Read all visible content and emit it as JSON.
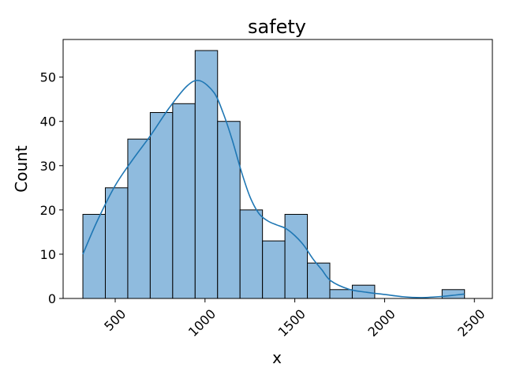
{
  "chart_data": {
    "type": "bar",
    "subtype": "histogram-with-kde",
    "title": "safety",
    "xlabel": "x",
    "ylabel": "Count",
    "xlim": [
      210,
      2600
    ],
    "ylim": [
      0,
      58.5
    ],
    "xticks": [
      500,
      1000,
      1500,
      2000,
      2500
    ],
    "xtick_labels": [
      "500",
      "1000",
      "1500",
      "2000",
      "2500"
    ],
    "xtick_rotation": 45,
    "yticks": [
      0,
      10,
      20,
      30,
      40,
      50
    ],
    "ytick_labels": [
      "0",
      "10",
      "20",
      "30",
      "40",
      "50"
    ],
    "grid": false,
    "legend": "none",
    "bin_edges": [
      320,
      445,
      570,
      695,
      820,
      945,
      1070,
      1195,
      1320,
      1445,
      1570,
      1695,
      1820,
      1945,
      2070,
      2195,
      2320,
      2445
    ],
    "counts": [
      19,
      25,
      36,
      42,
      44,
      56,
      40,
      20,
      13,
      19,
      8,
      2,
      3,
      0,
      0,
      0,
      2
    ],
    "kde": {
      "x": [
        320,
        400,
        500,
        600,
        700,
        800,
        900,
        970,
        1050,
        1100,
        1150,
        1200,
        1250,
        1300,
        1350,
        1400,
        1450,
        1500,
        1550,
        1600,
        1650,
        1700,
        1800,
        1900,
        2000,
        2100,
        2200,
        2300,
        2400,
        2445
      ],
      "y": [
        10,
        17.5,
        25.5,
        31.5,
        37,
        43,
        48,
        49.2,
        46.5,
        42,
        36,
        29,
        23,
        19.2,
        17.5,
        16.6,
        15.8,
        14.2,
        12,
        9,
        6.5,
        4,
        2.1,
        1.4,
        0.9,
        0.4,
        0.2,
        0.4,
        0.8,
        1.0
      ]
    },
    "colors": {
      "bar_fill": "#8fbbde",
      "bar_edge": "#000000",
      "kde_line": "#1f77b4"
    }
  }
}
